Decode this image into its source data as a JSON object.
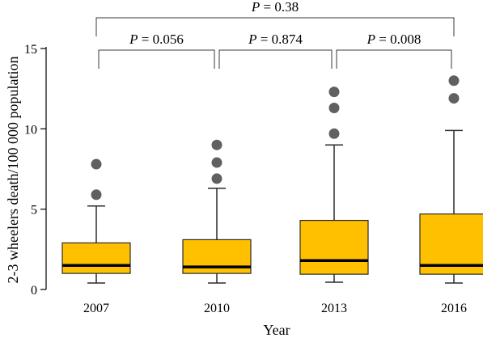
{
  "chart_data": {
    "type": "box",
    "title": "",
    "xlabel": "Year",
    "ylabel": "2-3 wheelers death/100 000 population",
    "ylim": [
      0,
      15
    ],
    "yticks": [
      0,
      5,
      10,
      15
    ],
    "grid": false,
    "legend": "none",
    "categories": [
      "2007",
      "2010",
      "2013",
      "2016"
    ],
    "boxes": [
      {
        "category": "2007",
        "whisker_low": 0.4,
        "q1": 1.0,
        "median": 1.5,
        "q3": 2.9,
        "whisker_high": 5.2,
        "outliers": [
          5.9,
          7.8
        ]
      },
      {
        "category": "2010",
        "whisker_low": 0.4,
        "q1": 1.0,
        "median": 1.4,
        "q3": 3.1,
        "whisker_high": 6.3,
        "outliers": [
          6.9,
          7.9,
          9.0
        ]
      },
      {
        "category": "2013",
        "whisker_low": 0.45,
        "q1": 0.95,
        "median": 1.8,
        "q3": 4.3,
        "whisker_high": 9.0,
        "outliers": [
          9.7,
          11.3,
          12.3
        ]
      },
      {
        "category": "2016",
        "whisker_low": 0.4,
        "q1": 0.95,
        "median": 1.5,
        "q3": 4.7,
        "whisker_high": 9.9,
        "outliers": [
          11.9,
          13.0
        ]
      }
    ],
    "comparisons": [
      {
        "from": "2007",
        "to": "2010",
        "label": "P = 0.056"
      },
      {
        "from": "2010",
        "to": "2013",
        "label": "P = 0.874"
      },
      {
        "from": "2013",
        "to": "2016",
        "label": "P = 0.008"
      },
      {
        "from": "2007",
        "to": "2016",
        "label": "P = 0.38"
      }
    ],
    "colors": {
      "box_fill": "#FFC000",
      "box_stroke": "#2b2b2b",
      "median": "#000000",
      "outlier": "#606060",
      "axis": "#000000",
      "bracket": "#3a3a3a"
    }
  }
}
